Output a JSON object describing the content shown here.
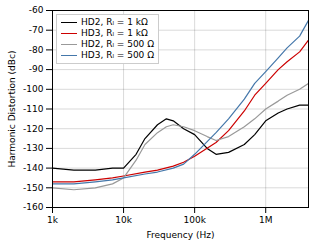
{
  "chart_data": {
    "type": "line",
    "xlabel": "Frequency (Hz)",
    "ylabel": "Harmonic Distortion (dBc)",
    "log": "x",
    "xlim": [
      1000,
      4000000
    ],
    "ylim": [
      -160,
      -60
    ],
    "xticks": [
      {
        "value": 1000,
        "label": "1k"
      },
      {
        "value": 10000,
        "label": "10k"
      },
      {
        "value": 100000,
        "label": "100k"
      },
      {
        "value": 1000000,
        "label": "1M"
      }
    ],
    "yticks": [
      -160,
      -150,
      -140,
      -130,
      -120,
      -110,
      -100,
      -90,
      -80,
      -70,
      -60
    ],
    "grid": true,
    "legend": "upper left",
    "series": [
      {
        "name": "HD2, Rₗ = 1 kΩ",
        "color": "#000000",
        "x": [
          1000,
          2000,
          4000,
          7000,
          10000,
          15000,
          20000,
          30000,
          40000,
          50000,
          70000,
          100000,
          150000,
          200000,
          300000,
          500000,
          700000,
          1000000,
          1500000,
          2000000,
          3000000,
          4000000
        ],
        "values": [
          -140,
          -141,
          -141,
          -140,
          -140,
          -133,
          -125,
          -118,
          -115,
          -116,
          -120,
          -123,
          -130,
          -133,
          -132,
          -128,
          -123,
          -116,
          -112,
          -110,
          -108,
          -108
        ]
      },
      {
        "name": "HD3, Rₗ = 1 kΩ",
        "color": "#cc0000",
        "x": [
          1000,
          2000,
          4000,
          7000,
          10000,
          20000,
          30000,
          50000,
          70000,
          100000,
          200000,
          300000,
          500000,
          700000,
          1000000,
          1500000,
          2000000,
          3000000,
          4000000
        ],
        "values": [
          -147,
          -147,
          -146,
          -145,
          -144,
          -142,
          -141,
          -139,
          -137,
          -134,
          -127,
          -121,
          -111,
          -103,
          -97,
          -90,
          -86,
          -81,
          -75
        ]
      },
      {
        "name": "HD2, Rₗ = 500 Ω",
        "color": "#999999",
        "x": [
          1000,
          2000,
          4000,
          7000,
          10000,
          15000,
          20000,
          30000,
          40000,
          50000,
          70000,
          100000,
          150000,
          200000,
          300000,
          500000,
          700000,
          1000000,
          1500000,
          2000000,
          3000000,
          4000000
        ],
        "values": [
          -150,
          -151,
          -150,
          -148,
          -145,
          -136,
          -128,
          -122,
          -119,
          -118,
          -119,
          -121,
          -124,
          -126,
          -124,
          -119,
          -115,
          -110,
          -106,
          -103,
          -100,
          -97
        ]
      },
      {
        "name": "HD3, Rₗ = 500 Ω",
        "color": "#4477aa",
        "x": [
          1000,
          2000,
          4000,
          7000,
          10000,
          20000,
          30000,
          50000,
          70000,
          100000,
          200000,
          300000,
          500000,
          700000,
          1000000,
          1500000,
          2000000,
          3000000,
          4000000
        ],
        "values": [
          -148,
          -148,
          -147,
          -146,
          -145,
          -143,
          -142,
          -140,
          -138,
          -133,
          -122,
          -115,
          -105,
          -97,
          -91,
          -84,
          -79,
          -73,
          -65
        ]
      }
    ]
  }
}
